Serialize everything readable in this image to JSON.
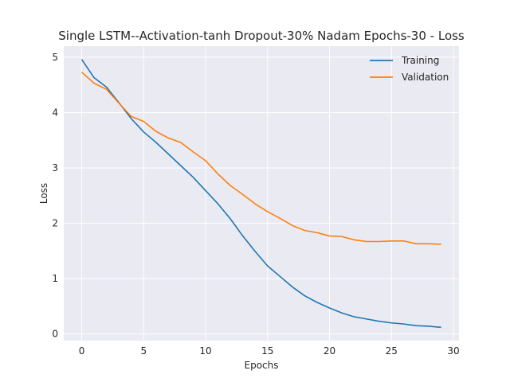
{
  "chart_data": {
    "type": "line",
    "title": "Single LSTM--Activation-tanh Dropout-30% Nadam Epochs-30 - Loss",
    "xlabel": "Epochs",
    "ylabel": "Loss",
    "xlim": [
      -1.45,
      30.45
    ],
    "ylim": [
      -0.12,
      5.2
    ],
    "xticks": [
      0,
      5,
      10,
      15,
      20,
      25,
      30
    ],
    "yticks": [
      0,
      1,
      2,
      3,
      4,
      5
    ],
    "grid": true,
    "legend_position": "top-right",
    "x": [
      0,
      1,
      2,
      3,
      4,
      5,
      6,
      7,
      8,
      9,
      10,
      11,
      12,
      13,
      14,
      15,
      16,
      17,
      18,
      19,
      20,
      21,
      22,
      23,
      24,
      25,
      26,
      27,
      28,
      29
    ],
    "series": [
      {
        "name": "Training",
        "color": "#1f77b4",
        "values": [
          4.96,
          4.63,
          4.46,
          4.18,
          3.89,
          3.65,
          3.46,
          3.25,
          3.04,
          2.83,
          2.59,
          2.35,
          2.08,
          1.77,
          1.49,
          1.23,
          1.04,
          0.85,
          0.69,
          0.57,
          0.47,
          0.38,
          0.31,
          0.27,
          0.23,
          0.2,
          0.18,
          0.15,
          0.14,
          0.12
        ]
      },
      {
        "name": "Validation",
        "color": "#ff7f0e",
        "values": [
          4.73,
          4.53,
          4.42,
          4.17,
          3.93,
          3.84,
          3.66,
          3.54,
          3.46,
          3.29,
          3.13,
          2.89,
          2.68,
          2.52,
          2.35,
          2.21,
          2.09,
          1.96,
          1.87,
          1.83,
          1.77,
          1.76,
          1.7,
          1.67,
          1.67,
          1.68,
          1.68,
          1.63,
          1.63,
          1.62
        ]
      }
    ]
  }
}
